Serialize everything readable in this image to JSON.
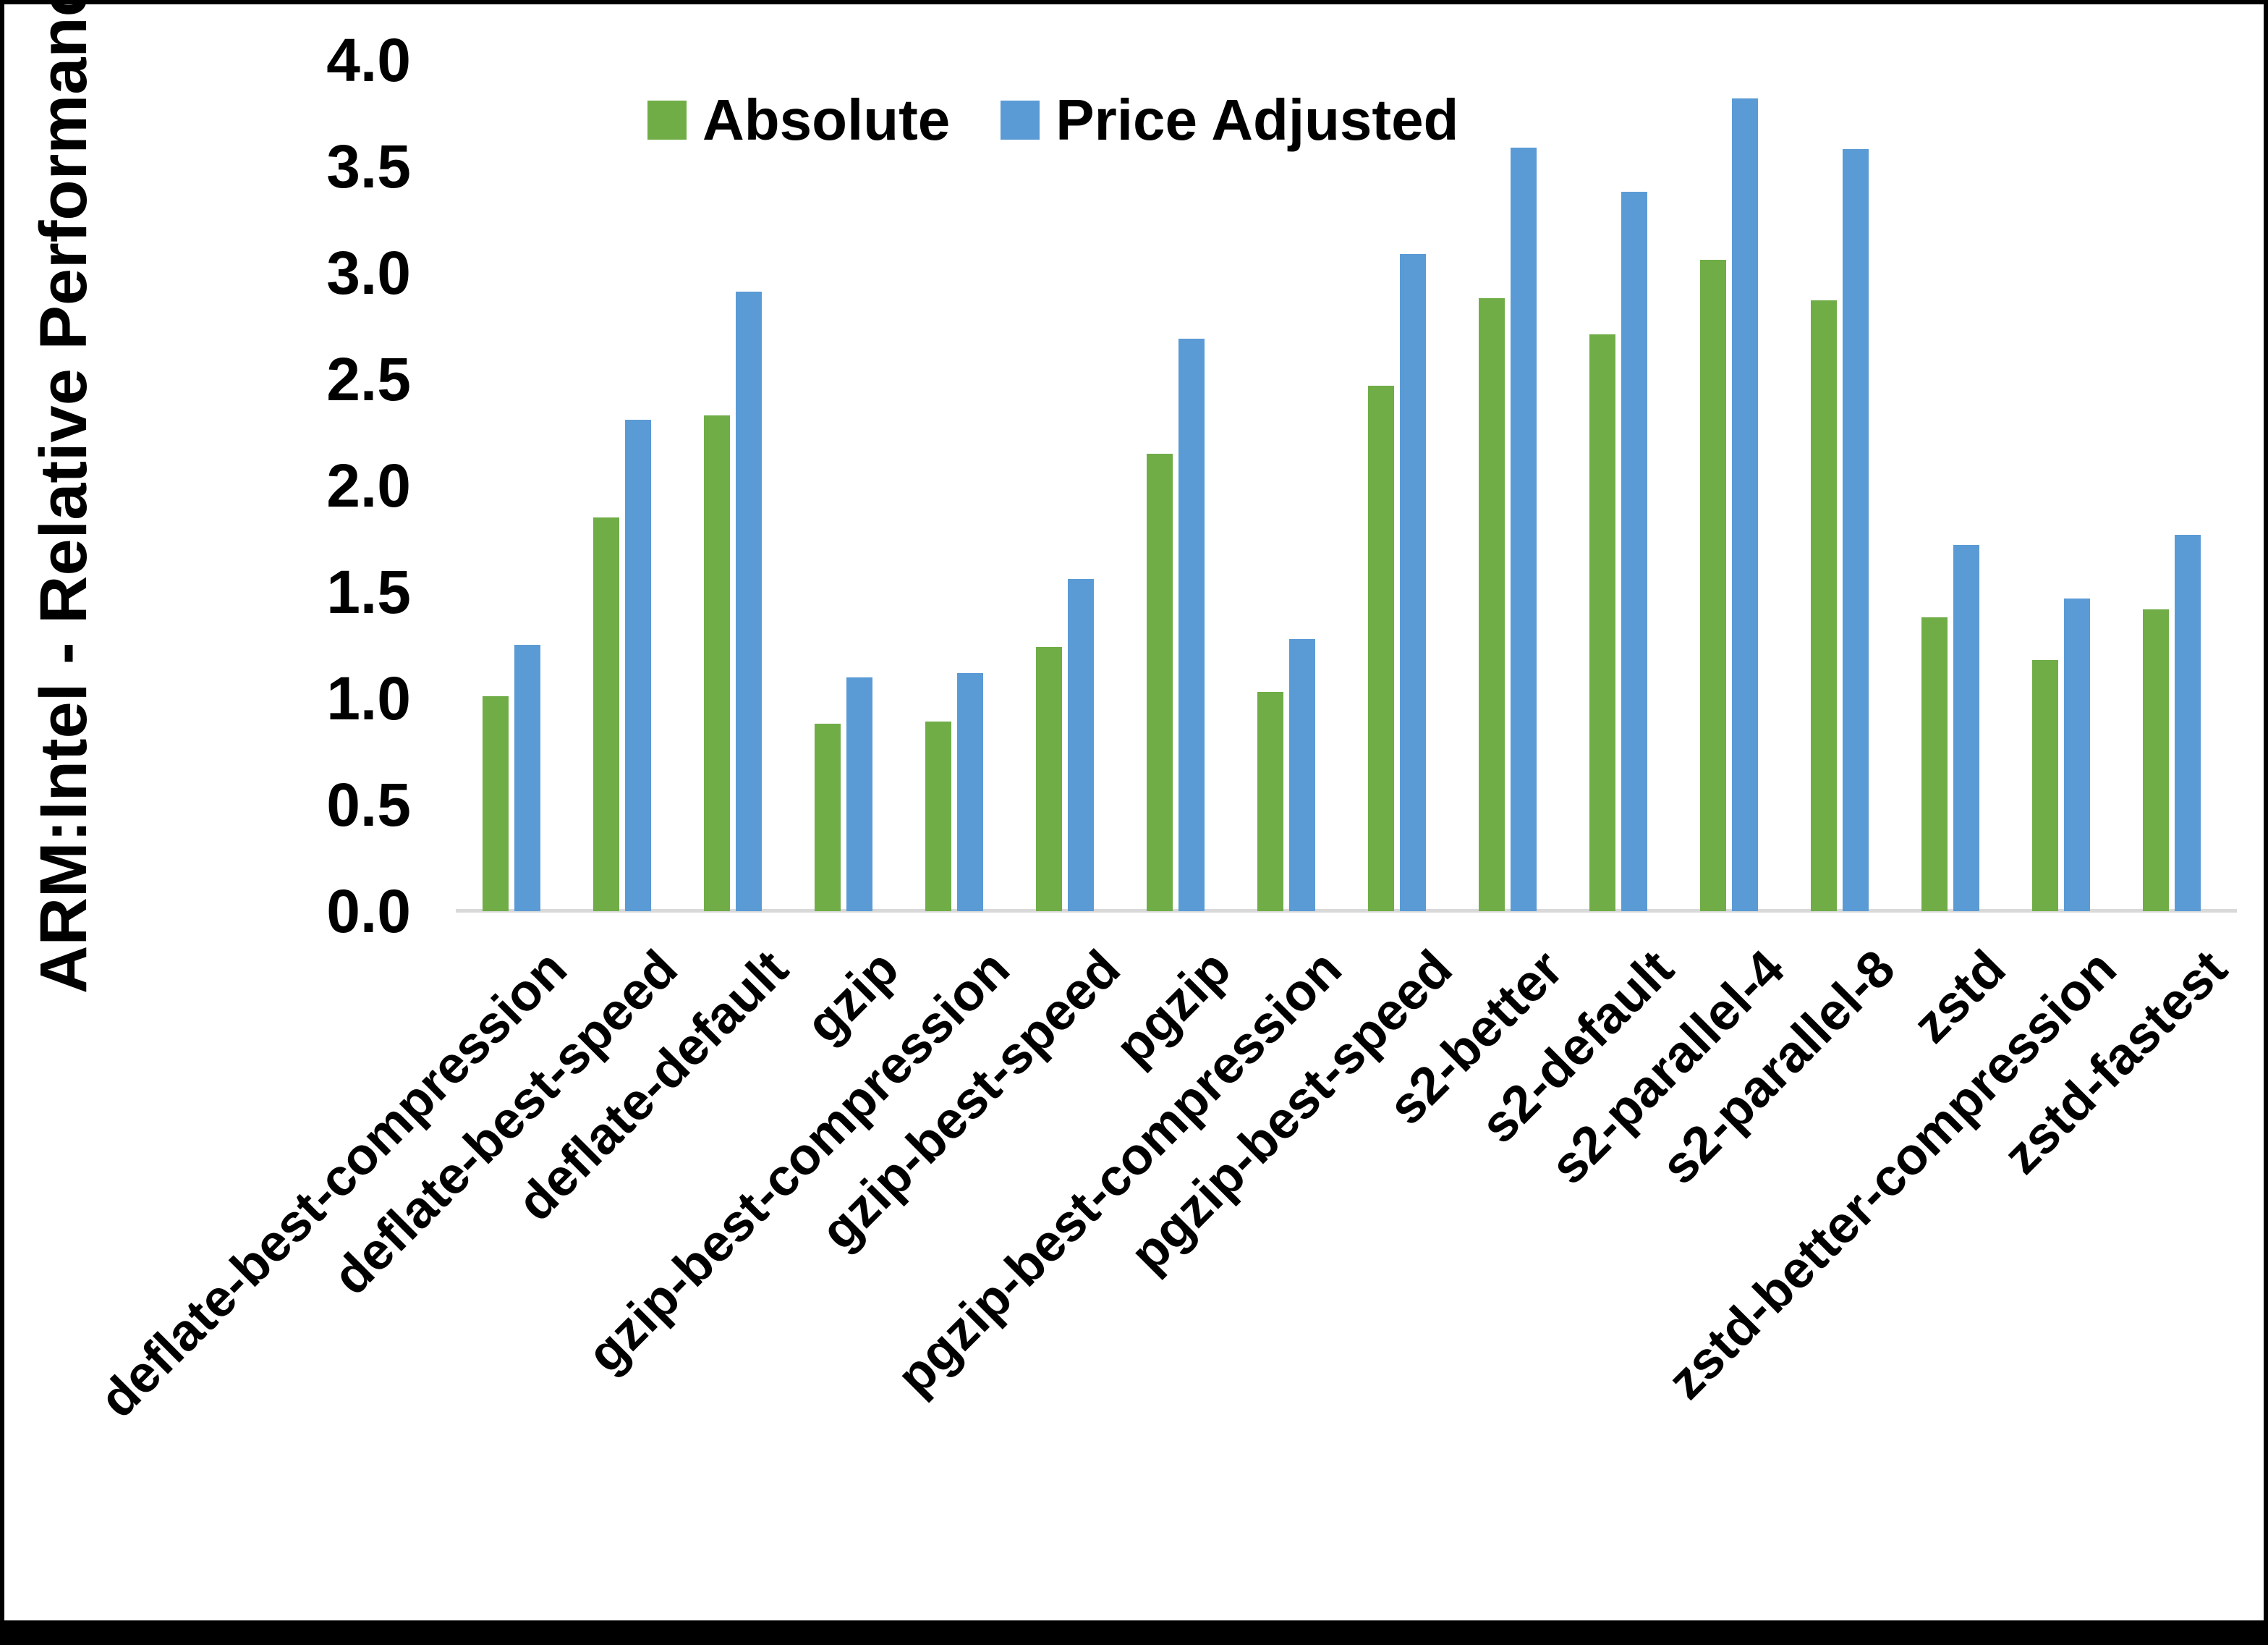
{
  "y_axis": {
    "title": "ARM:Intel - Relative Performance",
    "ticks": [
      "0.0",
      "0.5",
      "1.0",
      "1.5",
      "2.0",
      "2.5",
      "3.0",
      "3.5",
      "4.0"
    ],
    "min": 0.0,
    "max": 4.0,
    "step": 0.5
  },
  "legend": {
    "items": [
      {
        "label": "Absolute",
        "color": "#70AD47"
      },
      {
        "label": "Price Adjusted",
        "color": "#5B9BD5"
      }
    ]
  },
  "chart_data": {
    "type": "bar",
    "title": "",
    "xlabel": "",
    "ylabel": "ARM:Intel - Relative Performance",
    "ylim": [
      0.0,
      4.0
    ],
    "ytick_step": 0.5,
    "grid": false,
    "legend_position": "top-center",
    "categories": [
      "deflate-best-compression",
      "deflate-best-speed",
      "deflate-default",
      "gzip",
      "gzip-best-compression",
      "gzip-best-speed",
      "pgzip",
      "pgzip-best-compression",
      "pgzip-best-speed",
      "s2-better",
      "s2-default",
      "s2-parallel-4",
      "s2-parallel-8",
      "zstd",
      "zstd-better-compression",
      "zstd-fastest"
    ],
    "series": [
      {
        "name": "Absolute",
        "color": "#70AD47",
        "values": [
          1.01,
          1.85,
          2.33,
          0.88,
          0.89,
          1.24,
          2.15,
          1.03,
          2.47,
          2.88,
          2.71,
          3.06,
          2.87,
          1.38,
          1.18,
          1.42
        ]
      },
      {
        "name": "Price Adjusted",
        "color": "#5B9BD5",
        "values": [
          1.25,
          2.31,
          2.91,
          1.1,
          1.12,
          1.56,
          2.69,
          1.28,
          3.09,
          3.59,
          3.38,
          3.82,
          3.58,
          1.72,
          1.47,
          1.77
        ]
      }
    ]
  }
}
